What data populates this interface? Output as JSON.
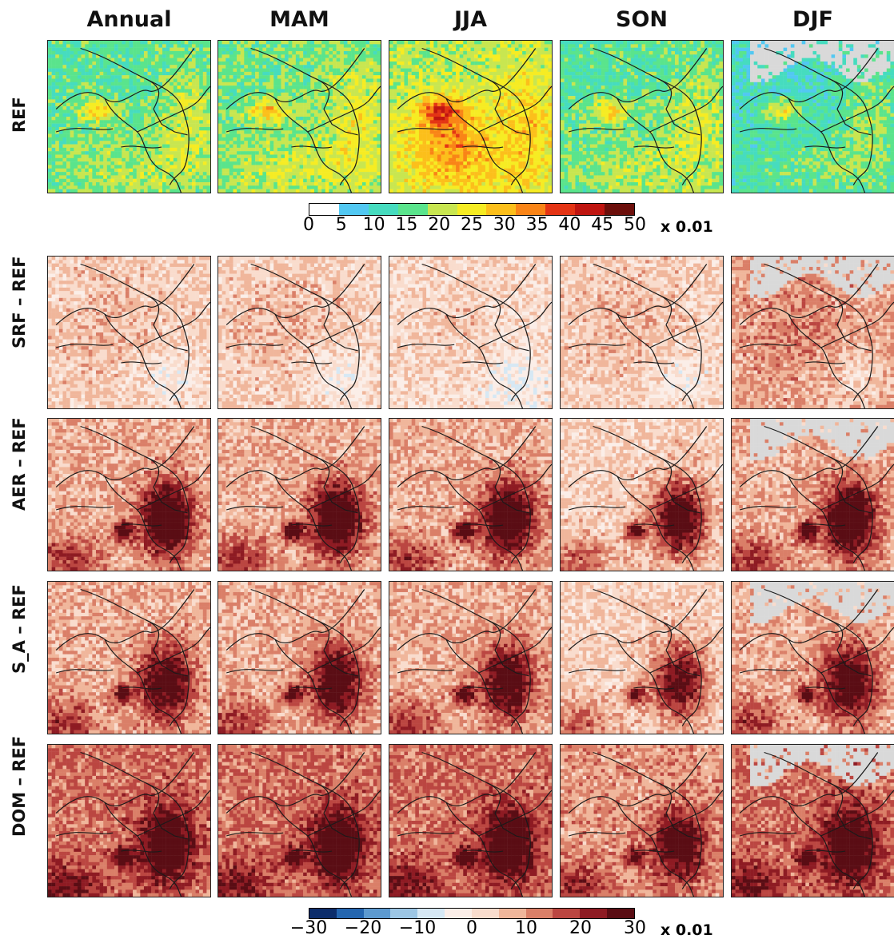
{
  "columns": [
    "Annual",
    "MAM",
    "JJA",
    "SON",
    "DJF"
  ],
  "rows": [
    "REF",
    "SRF – REF",
    "AER – REF",
    "S_A – REF",
    "DOM – REF"
  ],
  "colorbar_top": {
    "ticks": [
      "0",
      "5",
      "10",
      "15",
      "20",
      "25",
      "30",
      "35",
      "40",
      "45",
      "50"
    ],
    "unit": "x 0.01",
    "colors": [
      "#ffffff",
      "#52c8f2",
      "#46dcbf",
      "#5ae48c",
      "#c8e650",
      "#f6ec23",
      "#fcbf1b",
      "#f98417",
      "#e43414",
      "#bf1510",
      "#6c0f0b"
    ]
  },
  "colorbar_diff": {
    "ticks": [
      "−30",
      "−20",
      "−10",
      "0",
      "10",
      "20",
      "30"
    ],
    "tick_values": [
      -30,
      -20,
      -10,
      0,
      10,
      20,
      30
    ],
    "unit": "x 0.01",
    "colors": [
      "#0c2d6b",
      "#2466b0",
      "#5d9ad0",
      "#9cc6e4",
      "#d6e8f4",
      "#fbeee8",
      "#f9dccd",
      "#f0b69b",
      "#da7f68",
      "#bb4641",
      "#8e1b23",
      "#5a0d14"
    ]
  },
  "map_style": {
    "no_data_color": "#d9d9d9",
    "border_color": "#1a1a1a"
  }
}
